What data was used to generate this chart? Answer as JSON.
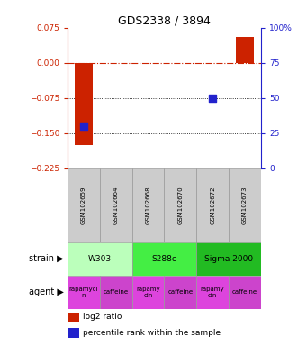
{
  "title": "GDS2338 / 3894",
  "samples": [
    "GSM102659",
    "GSM102664",
    "GSM102668",
    "GSM102670",
    "GSM102672",
    "GSM102673"
  ],
  "log2_ratio": [
    -0.175,
    0.0,
    0.0,
    0.0,
    0.0,
    0.055
  ],
  "percentile_rank": [
    30.0,
    0.0,
    0.0,
    0.0,
    50.0,
    0.0
  ],
  "ylim_left": [
    -0.225,
    0.075
  ],
  "ylim_right": [
    0,
    100
  ],
  "yticks_left": [
    0.075,
    0.0,
    -0.075,
    -0.15,
    -0.225
  ],
  "yticks_right": [
    100,
    75,
    50,
    25,
    0
  ],
  "dotted_lines": [
    -0.075,
    -0.15
  ],
  "bar_color": "#cc2200",
  "dot_color": "#2222cc",
  "strain_groups": [
    {
      "label": "W303",
      "start": 0,
      "end": 2,
      "color": "#bbffbb"
    },
    {
      "label": "S288c",
      "start": 2,
      "end": 4,
      "color": "#44ee44"
    },
    {
      "label": "Sigma 2000",
      "start": 4,
      "end": 6,
      "color": "#22bb22"
    }
  ],
  "agent_groups": [
    {
      "label": "rapamycin",
      "start": 0,
      "end": 1,
      "color": "#dd44dd"
    },
    {
      "label": "caffeine",
      "start": 1,
      "end": 2,
      "color": "#cc44cc"
    },
    {
      "label": "rapamycin",
      "start": 2,
      "end": 3,
      "color": "#dd44dd"
    },
    {
      "label": "caffeine",
      "start": 3,
      "end": 4,
      "color": "#cc44cc"
    },
    {
      "label": "rapamycin",
      "start": 4,
      "end": 5,
      "color": "#dd44dd"
    },
    {
      "label": "caffeine",
      "start": 5,
      "end": 6,
      "color": "#cc44cc"
    }
  ],
  "legend_bar_label": "log2 ratio",
  "legend_dot_label": "percentile rank within the sample",
  "left_tick_color": "#cc2200",
  "right_tick_color": "#2222cc",
  "bar_width": 0.55,
  "dot_size": 28
}
